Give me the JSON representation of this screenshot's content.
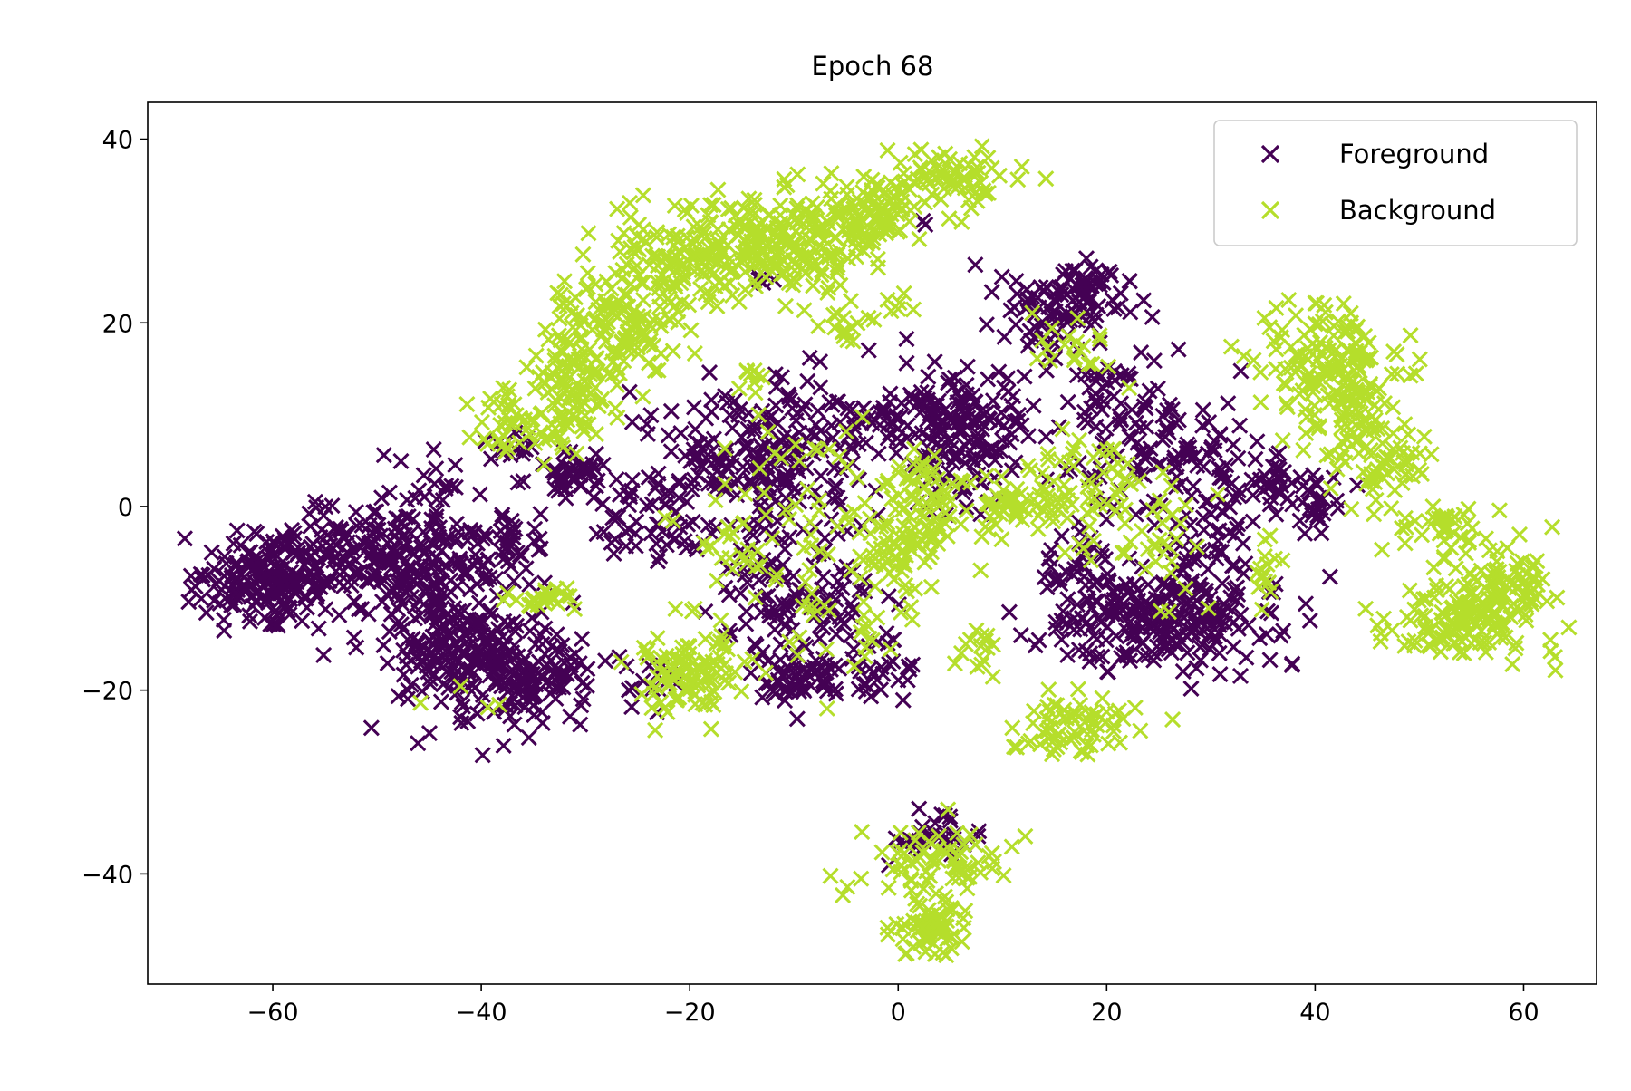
{
  "chart_data": {
    "type": "scatter",
    "title": "Epoch 68",
    "xlabel": "",
    "ylabel": "",
    "xlim": [
      -72,
      67
    ],
    "ylim": [
      -52,
      44
    ],
    "xticks": [
      -60,
      -40,
      -20,
      0,
      20,
      40,
      60
    ],
    "yticks": [
      -40,
      -20,
      0,
      20,
      40
    ],
    "xtick_labels": [
      "−60",
      "−40",
      "−20",
      "0",
      "20",
      "40",
      "60"
    ],
    "ytick_labels": [
      "−40",
      "−20",
      "0",
      "20",
      "40"
    ],
    "marker": "x",
    "grid": false,
    "legend_position": "upper-right",
    "series": [
      {
        "name": "Foreground",
        "color": "#440154",
        "clusters": [
          {
            "cx": -61,
            "cy": -8,
            "sx": 3.0,
            "sy": 2.2,
            "n": 160
          },
          {
            "cx": -53,
            "cy": -5,
            "sx": 4.0,
            "sy": 2.5,
            "n": 110
          },
          {
            "cx": -45,
            "cy": -8,
            "sx": 4.0,
            "sy": 6.0,
            "n": 260
          },
          {
            "cx": -40,
            "cy": -17,
            "sx": 4.0,
            "sy": 3.0,
            "n": 140
          },
          {
            "cx": -35,
            "cy": -19,
            "sx": 2.5,
            "sy": 1.8,
            "n": 70
          },
          {
            "cx": -38,
            "cy": -4,
            "sx": 2.0,
            "sy": 2.0,
            "n": 35
          },
          {
            "cx": -37,
            "cy": 7,
            "sx": 1.0,
            "sy": 1.0,
            "n": 12
          },
          {
            "cx": -31,
            "cy": 3,
            "sx": 2.0,
            "sy": 1.5,
            "n": 45
          },
          {
            "cx": -24,
            "cy": -1,
            "sx": 3.0,
            "sy": 2.0,
            "n": 55
          },
          {
            "cx": -18,
            "cy": 6,
            "sx": 3.0,
            "sy": 3.0,
            "n": 60
          },
          {
            "cx": -11,
            "cy": 6,
            "sx": 4.0,
            "sy": 4.5,
            "n": 150
          },
          {
            "cx": -9,
            "cy": -13,
            "sx": 4.0,
            "sy": 4.0,
            "n": 90
          },
          {
            "cx": -8,
            "cy": -19,
            "sx": 3.0,
            "sy": 1.5,
            "n": 50
          },
          {
            "cx": -2,
            "cy": -18,
            "sx": 2.0,
            "sy": 2.0,
            "n": 20
          },
          {
            "cx": -14,
            "cy": -6,
            "sx": 2.0,
            "sy": 2.0,
            "n": 20
          },
          {
            "cx": -23,
            "cy": -19,
            "sx": 2.0,
            "sy": 2.0,
            "n": 15
          },
          {
            "cx": 2,
            "cy": 10,
            "sx": 4.0,
            "sy": 2.5,
            "n": 80
          },
          {
            "cx": 7,
            "cy": 9,
            "sx": 3.0,
            "sy": 3.0,
            "n": 90
          },
          {
            "cx": 5,
            "cy": 3,
            "sx": 3.0,
            "sy": 2.0,
            "n": 35
          },
          {
            "cx": 14,
            "cy": 21,
            "sx": 3.0,
            "sy": 2.5,
            "n": 70
          },
          {
            "cx": 18,
            "cy": 24,
            "sx": 2.0,
            "sy": 1.5,
            "n": 45
          },
          {
            "cx": 20,
            "cy": 13,
            "sx": 2.0,
            "sy": 2.0,
            "n": 30
          },
          {
            "cx": 25,
            "cy": 5,
            "sx": 4.0,
            "sy": 4.0,
            "n": 110
          },
          {
            "cx": 30,
            "cy": -3,
            "sx": 2.0,
            "sy": 2.5,
            "n": 35
          },
          {
            "cx": 25,
            "cy": -12,
            "sx": 5.5,
            "sy": 3.0,
            "n": 260
          },
          {
            "cx": 17,
            "cy": -6,
            "sx": 2.0,
            "sy": 1.5,
            "n": 25
          },
          {
            "cx": 36,
            "cy": 3,
            "sx": 3.0,
            "sy": 1.5,
            "n": 40
          },
          {
            "cx": 40,
            "cy": 0,
            "sx": 1.5,
            "sy": 1.5,
            "n": 25
          },
          {
            "cx": 4,
            "cy": -36,
            "sx": 2.5,
            "sy": 1.5,
            "n": 30
          },
          {
            "cx": -13,
            "cy": 25,
            "sx": 1.0,
            "sy": 0.8,
            "n": 4
          },
          {
            "cx": 2,
            "cy": 31,
            "sx": 0.5,
            "sy": 0.5,
            "n": 2
          },
          {
            "cx": -30,
            "cy": -19,
            "sx": 0.5,
            "sy": 0.5,
            "n": 2
          },
          {
            "cx": -5,
            "cy": -10,
            "sx": 2.0,
            "sy": 2.0,
            "n": 15
          }
        ]
      },
      {
        "name": "Background",
        "color": "#b5de2b",
        "clusters": [
          {
            "cx": -20,
            "cy": 27,
            "sx": 4.0,
            "sy": 3.0,
            "n": 120
          },
          {
            "cx": -27,
            "cy": 20,
            "sx": 3.0,
            "sy": 3.0,
            "n": 110
          },
          {
            "cx": -31,
            "cy": 14,
            "sx": 2.5,
            "sy": 2.5,
            "n": 80
          },
          {
            "cx": -36,
            "cy": 9,
            "sx": 3.0,
            "sy": 2.0,
            "n": 60
          },
          {
            "cx": -14,
            "cy": 29,
            "sx": 3.0,
            "sy": 2.0,
            "n": 90
          },
          {
            "cx": -8,
            "cy": 29,
            "sx": 3.5,
            "sy": 3.0,
            "n": 110
          },
          {
            "cx": -2,
            "cy": 32,
            "sx": 3.0,
            "sy": 2.0,
            "n": 70
          },
          {
            "cx": 4,
            "cy": 36,
            "sx": 3.0,
            "sy": 1.8,
            "n": 70
          },
          {
            "cx": -5,
            "cy": 20,
            "sx": 1.5,
            "sy": 1.5,
            "n": 15
          },
          {
            "cx": 0,
            "cy": 22,
            "sx": 0.6,
            "sy": 0.6,
            "n": 6
          },
          {
            "cx": -20,
            "cy": -18,
            "sx": 2.5,
            "sy": 2.5,
            "n": 100
          },
          {
            "cx": -34,
            "cy": -10,
            "sx": 1.5,
            "sy": 0.8,
            "n": 25
          },
          {
            "cx": -14,
            "cy": 14,
            "sx": 0.8,
            "sy": 0.7,
            "n": 8
          },
          {
            "cx": -10,
            "cy": 3,
            "sx": 6.0,
            "sy": 5.0,
            "n": 45
          },
          {
            "cx": -6,
            "cy": -12,
            "sx": 4.0,
            "sy": 4.0,
            "n": 35
          },
          {
            "cx": 0,
            "cy": -4,
            "sx": 2.5,
            "sy": 3.0,
            "n": 80
          },
          {
            "cx": 3,
            "cy": 2,
            "sx": 2.0,
            "sy": 2.0,
            "n": 40
          },
          {
            "cx": 10,
            "cy": 0,
            "sx": 1.5,
            "sy": 1.5,
            "n": 40
          },
          {
            "cx": 16,
            "cy": 2,
            "sx": 3.0,
            "sy": 3.0,
            "n": 60
          },
          {
            "cx": 17,
            "cy": 17,
            "sx": 2.0,
            "sy": 2.0,
            "n": 20
          },
          {
            "cx": 22,
            "cy": 0,
            "sx": 3.0,
            "sy": 3.0,
            "n": 25
          },
          {
            "cx": 8,
            "cy": -15,
            "sx": 1.2,
            "sy": 1.5,
            "n": 15
          },
          {
            "cx": 17,
            "cy": -24,
            "sx": 3.0,
            "sy": 1.8,
            "n": 70
          },
          {
            "cx": 4,
            "cy": -39,
            "sx": 4.0,
            "sy": 2.0,
            "n": 70
          },
          {
            "cx": 3,
            "cy": -46,
            "sx": 2.0,
            "sy": 1.5,
            "n": 70
          },
          {
            "cx": 41,
            "cy": 16,
            "sx": 3.0,
            "sy": 3.0,
            "n": 120
          },
          {
            "cx": 44,
            "cy": 9,
            "sx": 3.0,
            "sy": 3.0,
            "n": 80
          },
          {
            "cx": 47,
            "cy": 4,
            "sx": 2.0,
            "sy": 1.5,
            "n": 30
          },
          {
            "cx": 52,
            "cy": -2,
            "sx": 2.5,
            "sy": 1.0,
            "n": 30
          },
          {
            "cx": 57,
            "cy": -10,
            "sx": 3.0,
            "sy": 3.0,
            "n": 150
          },
          {
            "cx": 52,
            "cy": -13,
            "sx": 3.5,
            "sy": 2.0,
            "n": 60
          },
          {
            "cx": 35,
            "cy": -7,
            "sx": 1.0,
            "sy": 2.0,
            "n": 15
          },
          {
            "cx": 27,
            "cy": -4,
            "sx": 2.0,
            "sy": 3.0,
            "n": 20
          },
          {
            "cx": -40,
            "cy": -20,
            "sx": 3.0,
            "sy": 0.8,
            "n": 4
          },
          {
            "cx": 33,
            "cy": 16,
            "sx": 0.5,
            "sy": 0.5,
            "n": 2
          },
          {
            "cx": -16,
            "cy": -5,
            "sx": 1.5,
            "sy": 1.5,
            "n": 15
          }
        ]
      }
    ]
  }
}
